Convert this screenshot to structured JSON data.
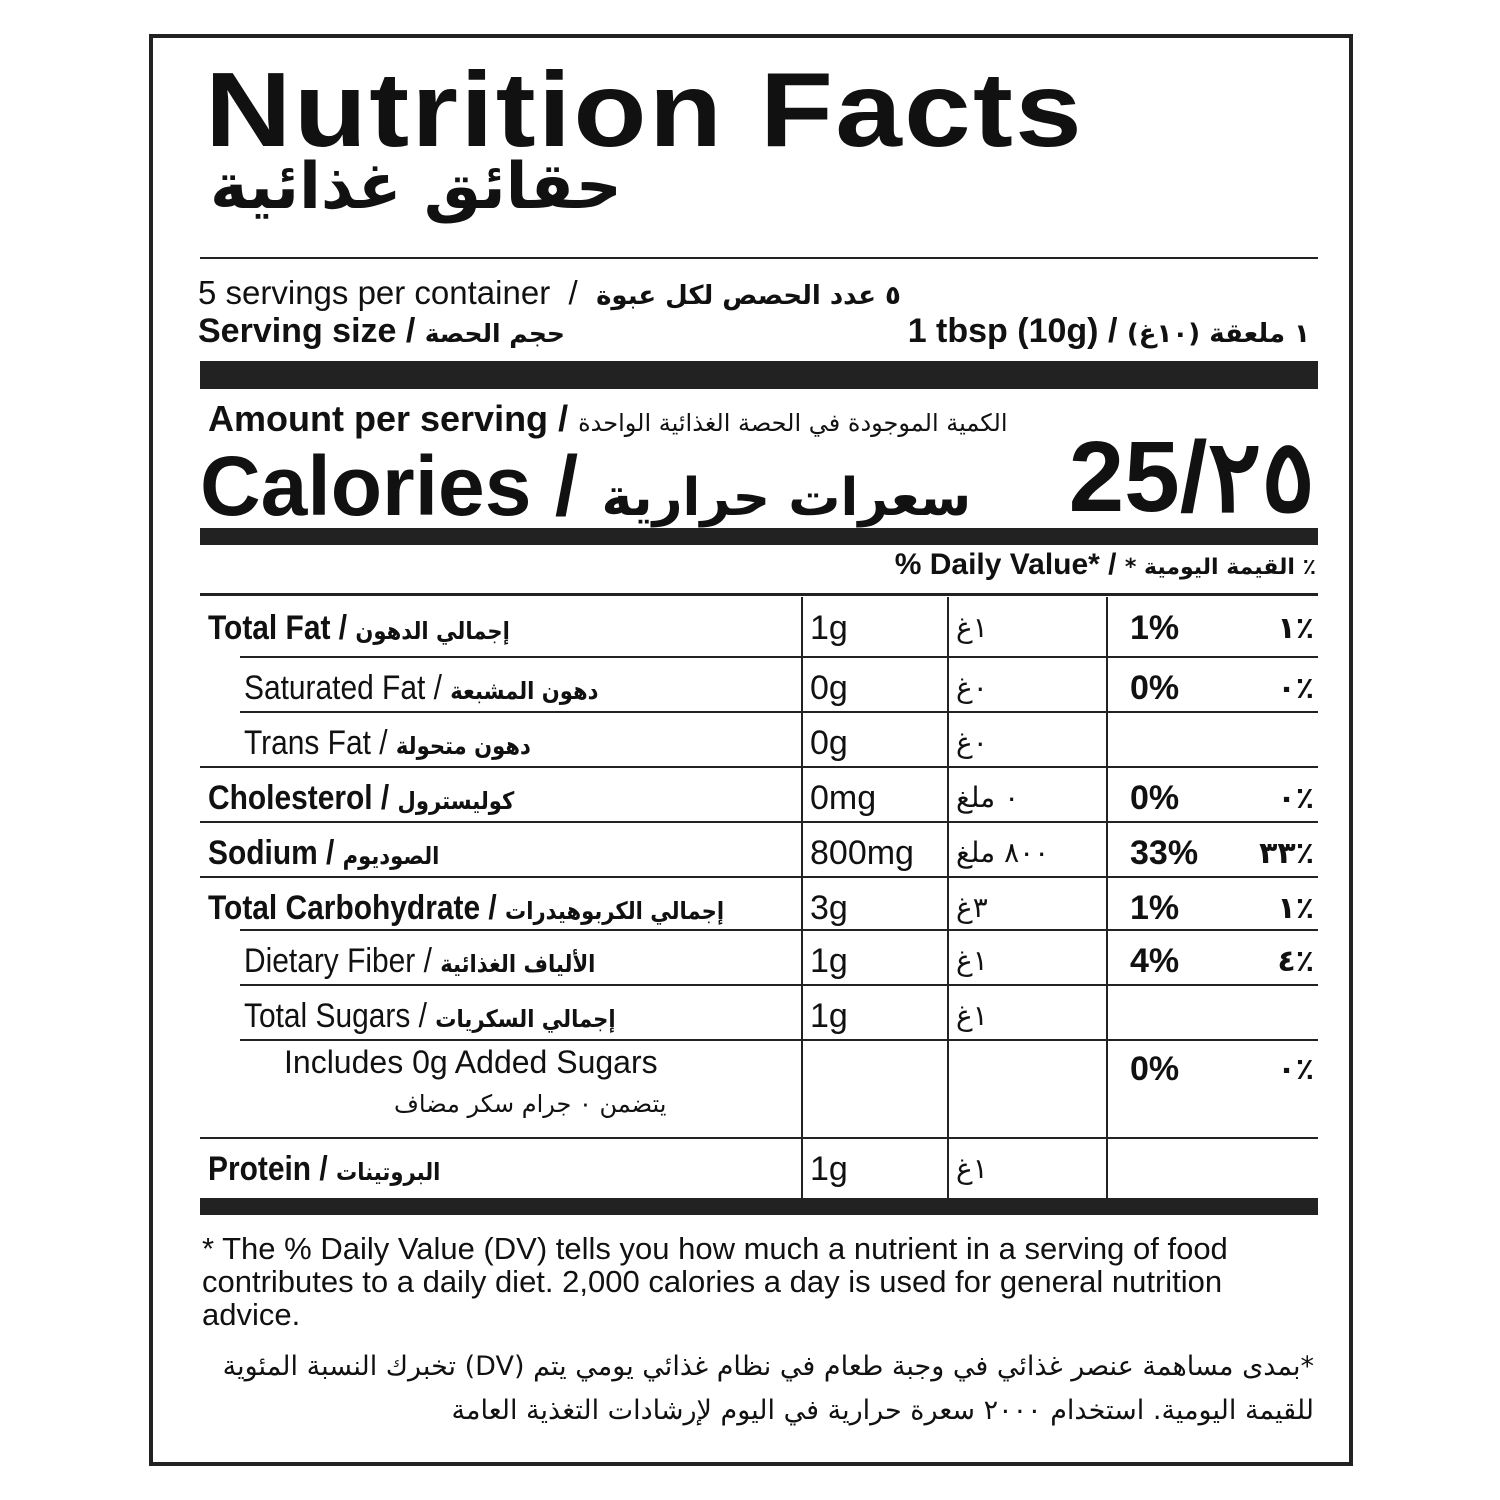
{
  "title": "Nutrition Facts",
  "title_ar": "حقائق غذائية",
  "servings": {
    "en": "5 servings per container",
    "ar": "٥ عدد الحصص لكل عبوة"
  },
  "serving_size": {
    "label": "Serving size",
    "label_ar": "حجم الحصة",
    "value": "1 tbsp (10g)",
    "value_ar": "١ ملعقة (١٠غ)"
  },
  "amount": {
    "en": "Amount per serving",
    "ar": "الكمية الموجودة في الحصة الغذائية الواحدة"
  },
  "calories": {
    "label": "Calories",
    "label_ar": "سعرات حرارية",
    "value": "25/٢٥"
  },
  "dv_header": {
    "en": "% Daily Value*",
    "ar": "٪ القيمة اليومية *"
  },
  "nutrients": [
    {
      "name": "Total Fat",
      "name_ar": "إجمالي الدهون",
      "amount": "1g",
      "amount_ar": "١غ",
      "dv": "1%",
      "dv_ar": "٪١",
      "bold": true,
      "indent": 0
    },
    {
      "name": "Saturated Fat",
      "name_ar": "دهون المشبعة",
      "amount": "0g",
      "amount_ar": "٠غ",
      "dv": "0%",
      "dv_ar": "٪٠",
      "bold": false,
      "indent": 1
    },
    {
      "name": "Trans Fat",
      "name_ar": "دهون متحولة",
      "amount": "0g",
      "amount_ar": "٠غ",
      "dv": "",
      "dv_ar": "",
      "bold": false,
      "indent": 1
    },
    {
      "name": "Cholesterol",
      "name_ar": "كوليسترول",
      "amount": "0mg",
      "amount_ar": "٠ ملغ",
      "dv": "0%",
      "dv_ar": "٪٠",
      "bold": true,
      "indent": 0
    },
    {
      "name": "Sodium",
      "name_ar": "الصوديوم",
      "amount": "800mg",
      "amount_ar": "٨٠٠ ملغ",
      "dv": "33%",
      "dv_ar": "٪٣٣",
      "bold": true,
      "indent": 0
    },
    {
      "name": "Total Carbohydrate",
      "name_ar": "إجمالي الكربوهيدرات",
      "amount": "3g",
      "amount_ar": "٣غ",
      "dv": "1%",
      "dv_ar": "٪١",
      "bold": true,
      "indent": 0
    },
    {
      "name": "Dietary Fiber",
      "name_ar": "الألياف الغذائية",
      "amount": "1g",
      "amount_ar": "١غ",
      "dv": "4%",
      "dv_ar": "٪٤",
      "bold": false,
      "indent": 1
    },
    {
      "name": "Total Sugars",
      "name_ar": "إجمالي السكريات",
      "amount": "1g",
      "amount_ar": "١غ",
      "dv": "",
      "dv_ar": "",
      "bold": false,
      "indent": 1
    },
    {
      "name": "Includes 0g Added Sugars",
      "name_ar": "يتضمن ٠ جرام سكر مضاف",
      "amount": "",
      "amount_ar": "",
      "dv": "0%",
      "dv_ar": "٪٠",
      "bold": false,
      "indent": 2
    },
    {
      "name": "Protein",
      "name_ar": "البروتينات",
      "amount": "1g",
      "amount_ar": "١غ",
      "dv": "",
      "dv_ar": "",
      "bold": true,
      "indent": 0
    }
  ],
  "footnote": "* The % Daily Value (DV) tells you how much a nutrient in a serving of food contributes to a daily diet. 2,000 calories a day is used for general nutrition advice.",
  "footnote_ar": "*بمدى مساهمة عنصر غذائي في وجبة طعام في نظام غذائي يومي يتم (DV) تخبرك النسبة المئوية للقيمة اليومية. استخدام ٢٠٠٠ سعرة حرارية في اليوم لإرشادات التغذية العامة"
}
